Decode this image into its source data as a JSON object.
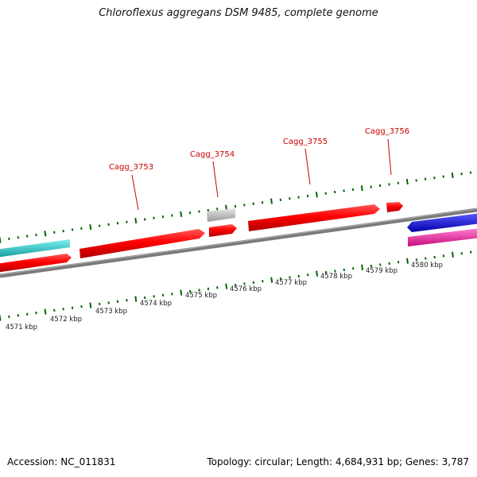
{
  "title": "Chloroflexus aggregans DSM 9485, complete genome",
  "footer": {
    "accession": "Accession: NC_011831",
    "summary": "Topology: circular; Length: 4,684,931 bp; Genes: 3,787"
  },
  "colors": {
    "gene_red": "#ff0000",
    "gene_gray": "#c4c4c4",
    "gene_cyan": "#26d0d0",
    "gene_blue": "#0000ff",
    "gene_pink": "#ff1fa8",
    "backbone": "#808080",
    "ticks": "#006600",
    "label_red": "#cc0000"
  },
  "scale_labels": [
    {
      "text": "4571 kbp",
      "kbp": 4571
    },
    {
      "text": "4572 kbp",
      "kbp": 4572
    },
    {
      "text": "4573 kbp",
      "kbp": 4573
    },
    {
      "text": "4574 kbp",
      "kbp": 4574
    },
    {
      "text": "4575 kbp",
      "kbp": 4575
    },
    {
      "text": "4576 kbp",
      "kbp": 4576
    },
    {
      "text": "4577 kbp",
      "kbp": 4577
    },
    {
      "text": "4578 kbp",
      "kbp": 4578
    },
    {
      "text": "4579 kbp",
      "kbp": 4579
    },
    {
      "text": "4580 kbp",
      "kbp": 4580
    }
  ],
  "gene_labels": [
    {
      "text": "Cagg_3753"
    },
    {
      "text": "Cagg_3754"
    },
    {
      "text": "Cagg_3755"
    },
    {
      "text": "Cagg_3756"
    }
  ]
}
